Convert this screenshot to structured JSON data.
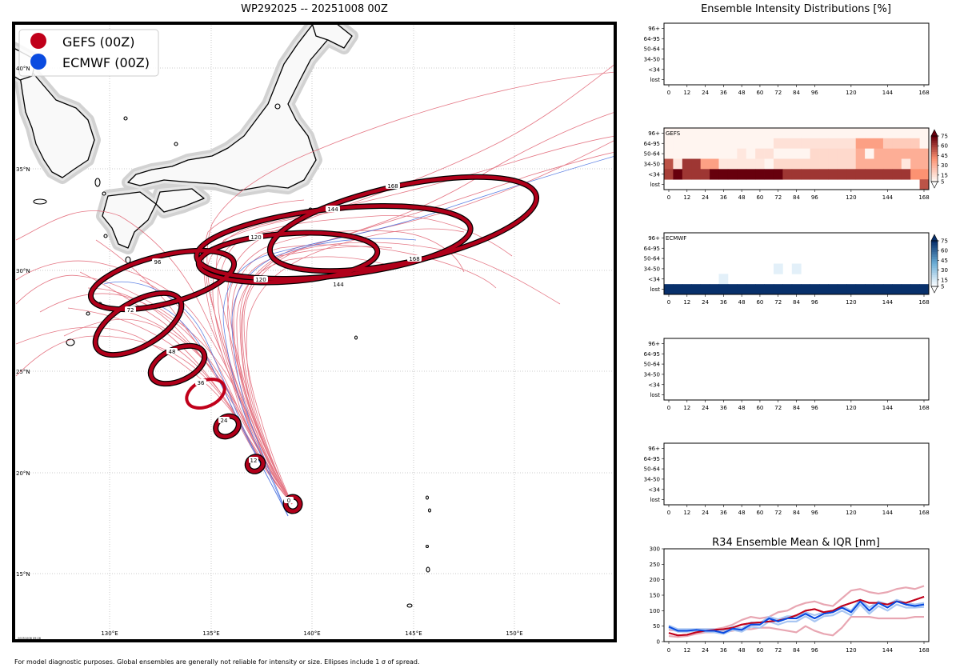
{
  "map": {
    "title": "WP292025 -- 20251008 00Z",
    "legend": [
      {
        "label": "GEFS (00Z)",
        "color": "#c0001a"
      },
      {
        "label": "ECMWF (00Z)",
        "color": "#0a4be0"
      }
    ],
    "lat_labels": [
      "40°N",
      "35°N",
      "30°N",
      "25°N",
      "20°N",
      "15°N"
    ],
    "lon_labels": [
      "130°E",
      "135°E",
      "140°E",
      "145°E",
      "150°E"
    ],
    "stamp": "20251008 09:26",
    "footnote": "For model diagnostic purposes. Global ensembles are generally not reliable for intensity or size. Ellipses include 1 σ of spread.",
    "ellipse_hours": [
      "0",
      "12",
      "24",
      "36",
      "48",
      "72",
      "96",
      "120",
      "120",
      "144",
      "144",
      "168",
      "168"
    ]
  },
  "panels": {
    "title": "Ensemble Intensity Distributions [%]",
    "ylabels": [
      "96+",
      "64-95",
      "50-64",
      "34-50",
      "<34",
      "lost"
    ],
    "xlabels": [
      "0",
      "12",
      "24",
      "36",
      "48",
      "60",
      "72",
      "84",
      "96",
      "120",
      "144",
      "168"
    ],
    "gefs_label": "GEFS",
    "ecmwf_label": "ECMWF",
    "colorbar_ticks": [
      "75",
      "60",
      "45",
      "30",
      "15",
      "5"
    ]
  },
  "chart_data": [
    {
      "type": "heatmap",
      "name": "GEFS",
      "title": "GEFS",
      "x_hours": [
        0,
        6,
        12,
        18,
        24,
        30,
        36,
        42,
        48,
        54,
        60,
        66,
        72,
        78,
        84,
        90,
        96,
        102,
        108,
        114,
        120,
        126,
        132,
        138,
        144,
        150,
        156,
        162,
        168
      ],
      "rows": [
        "96+",
        "64-95",
        "50-64",
        "34-50",
        "<34",
        "lost"
      ],
      "values": [
        [
          2,
          2,
          2,
          2,
          2,
          2,
          2,
          2,
          2,
          2,
          2,
          2,
          2,
          2,
          2,
          2,
          2,
          2,
          2,
          2,
          2,
          2,
          2,
          2,
          2,
          2,
          2,
          2,
          2
        ],
        [
          2,
          2,
          2,
          2,
          2,
          2,
          2,
          2,
          2,
          2,
          2,
          2,
          12,
          12,
          12,
          12,
          12,
          12,
          12,
          12,
          12,
          35,
          35,
          35,
          20,
          20,
          20,
          20,
          5
        ],
        [
          2,
          2,
          2,
          2,
          2,
          2,
          2,
          2,
          10,
          2,
          12,
          12,
          5,
          5,
          5,
          5,
          15,
          15,
          15,
          15,
          15,
          30,
          5,
          30,
          30,
          30,
          30,
          30,
          30
        ],
        [
          55,
          10,
          62,
          62,
          35,
          35,
          10,
          10,
          10,
          10,
          10,
          5,
          15,
          15,
          15,
          15,
          15,
          15,
          15,
          15,
          15,
          30,
          30,
          30,
          30,
          30,
          10,
          30,
          30
        ],
        [
          60,
          85,
          62,
          62,
          62,
          75,
          90,
          90,
          90,
          90,
          90,
          90,
          90,
          62,
          62,
          62,
          62,
          62,
          62,
          62,
          62,
          62,
          62,
          62,
          62,
          62,
          62,
          40,
          40
        ],
        [
          0,
          0,
          0,
          0,
          0,
          0,
          0,
          0,
          0,
          0,
          0,
          0,
          0,
          0,
          0,
          0,
          0,
          0,
          0,
          0,
          0,
          0,
          0,
          0,
          0,
          0,
          0,
          0,
          55
        ]
      ],
      "colorbar_range": [
        5,
        75
      ]
    },
    {
      "type": "heatmap",
      "name": "ECMWF",
      "title": "ECMWF",
      "x_hours": [
        0,
        6,
        12,
        18,
        24,
        30,
        36,
        42,
        48,
        54,
        60,
        66,
        72,
        78,
        84,
        90,
        96,
        102,
        108,
        114,
        120,
        126,
        132,
        138,
        144,
        150,
        156,
        162,
        168
      ],
      "rows": [
        "96+",
        "64-95",
        "50-64",
        "34-50",
        "<34",
        "lost"
      ],
      "values": [
        [
          0,
          0,
          0,
          0,
          0,
          0,
          0,
          0,
          0,
          0,
          0,
          0,
          0,
          0,
          0,
          0,
          0,
          0,
          0,
          0,
          0,
          0,
          0,
          0,
          0,
          0,
          0,
          0,
          0
        ],
        [
          0,
          0,
          0,
          0,
          0,
          0,
          0,
          0,
          0,
          0,
          0,
          0,
          0,
          0,
          0,
          0,
          0,
          0,
          0,
          0,
          0,
          0,
          0,
          0,
          0,
          0,
          0,
          0,
          0
        ],
        [
          0,
          0,
          0,
          0,
          0,
          0,
          0,
          0,
          0,
          0,
          0,
          0,
          0,
          0,
          0,
          0,
          0,
          0,
          0,
          0,
          0,
          0,
          0,
          0,
          0,
          0,
          0,
          0,
          0
        ],
        [
          0,
          0,
          0,
          0,
          0,
          0,
          0,
          0,
          0,
          0,
          0,
          0,
          10,
          0,
          10,
          0,
          0,
          0,
          0,
          0,
          0,
          0,
          0,
          0,
          0,
          0,
          0,
          0,
          0
        ],
        [
          0,
          0,
          0,
          0,
          0,
          0,
          10,
          0,
          0,
          0,
          0,
          0,
          0,
          0,
          0,
          0,
          0,
          0,
          0,
          0,
          0,
          0,
          0,
          0,
          0,
          0,
          0,
          0,
          0
        ],
        [
          100,
          100,
          100,
          100,
          100,
          100,
          100,
          100,
          100,
          100,
          100,
          100,
          100,
          100,
          100,
          100,
          100,
          100,
          100,
          100,
          100,
          100,
          100,
          100,
          100,
          100,
          100,
          100,
          100
        ]
      ],
      "colorbar_range": [
        5,
        75
      ]
    },
    {
      "type": "line",
      "title": "R34 Ensemble Mean & IQR [nm]",
      "x": [
        0,
        6,
        12,
        18,
        24,
        30,
        36,
        42,
        48,
        54,
        60,
        66,
        72,
        78,
        84,
        90,
        96,
        102,
        108,
        114,
        120,
        126,
        132,
        138,
        144,
        150,
        156,
        162,
        168
      ],
      "ylim": [
        0,
        300
      ],
      "yticks": [
        "300",
        "250",
        "200",
        "150",
        "100",
        "50",
        "0"
      ],
      "series": [
        {
          "name": "GEFS mean",
          "color": "#c0001a",
          "values": [
            28,
            20,
            22,
            30,
            35,
            38,
            40,
            45,
            55,
            60,
            62,
            65,
            68,
            75,
            85,
            100,
            105,
            95,
            100,
            115,
            125,
            135,
            125,
            125,
            120,
            130,
            125,
            135,
            145
          ]
        },
        {
          "name": "GEFS IQR upper",
          "color": "#e8a6b2",
          "values": [
            38,
            35,
            35,
            40,
            40,
            40,
            45,
            55,
            70,
            80,
            75,
            80,
            95,
            100,
            115,
            125,
            130,
            120,
            115,
            140,
            165,
            170,
            160,
            155,
            160,
            170,
            175,
            170,
            180
          ]
        },
        {
          "name": "GEFS IQR lower",
          "color": "#e8a6b2",
          "values": [
            18,
            15,
            18,
            25,
            30,
            30,
            30,
            35,
            40,
            40,
            45,
            45,
            40,
            35,
            30,
            50,
            35,
            25,
            20,
            45,
            80,
            80,
            80,
            75,
            75,
            75,
            75,
            80,
            80
          ]
        },
        {
          "name": "ECMWF mean",
          "color": "#0a4be0",
          "values": [
            48,
            35,
            35,
            38,
            35,
            35,
            28,
            42,
            38,
            55,
            55,
            75,
            65,
            75,
            75,
            90,
            75,
            90,
            95,
            110,
            95,
            130,
            100,
            125,
            110,
            130,
            120,
            115,
            120
          ]
        },
        {
          "name": "ECMWF IQR upper",
          "color": "#a9c6f2",
          "values": [
            52,
            40,
            40,
            40,
            40,
            40,
            35,
            48,
            42,
            62,
            60,
            80,
            72,
            82,
            82,
            95,
            85,
            95,
            100,
            115,
            100,
            135,
            110,
            130,
            120,
            135,
            125,
            120,
            125
          ]
        },
        {
          "name": "ECMWF IQR lower",
          "color": "#a9c6f2",
          "values": [
            44,
            32,
            32,
            35,
            32,
            30,
            25,
            38,
            32,
            48,
            45,
            65,
            55,
            65,
            65,
            82,
            65,
            82,
            85,
            100,
            85,
            120,
            90,
            115,
            100,
            120,
            110,
            110,
            112
          ]
        }
      ]
    }
  ]
}
